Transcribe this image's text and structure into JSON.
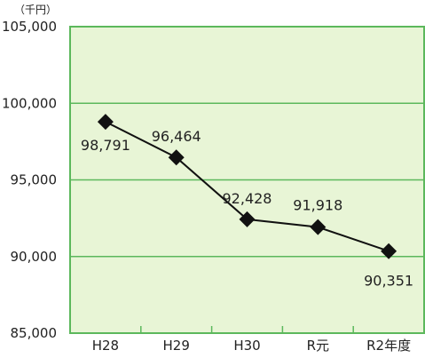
{
  "chart_data": {
    "type": "line",
    "unit_label": "（千円）",
    "categories": [
      "H28",
      "H29",
      "H30",
      "R元",
      "R2年度"
    ],
    "values": [
      98791,
      96464,
      92428,
      91918,
      90351
    ],
    "data_labels": [
      "98,791",
      "96,464",
      "92,428",
      "91,918",
      "90,351"
    ],
    "ylim": [
      85000,
      105000
    ],
    "yticks": [
      85000,
      90000,
      95000,
      100000,
      105000
    ],
    "ytick_labels": [
      "85,000",
      "90,000",
      "95,000",
      "100,000",
      "105,000"
    ],
    "grid": true,
    "legend": "none",
    "colors": {
      "plot_background": "#e8f5d6",
      "frame": "#5cb85c",
      "gridline": "#5cb85c",
      "line": "#111111",
      "marker": "#111111"
    }
  }
}
